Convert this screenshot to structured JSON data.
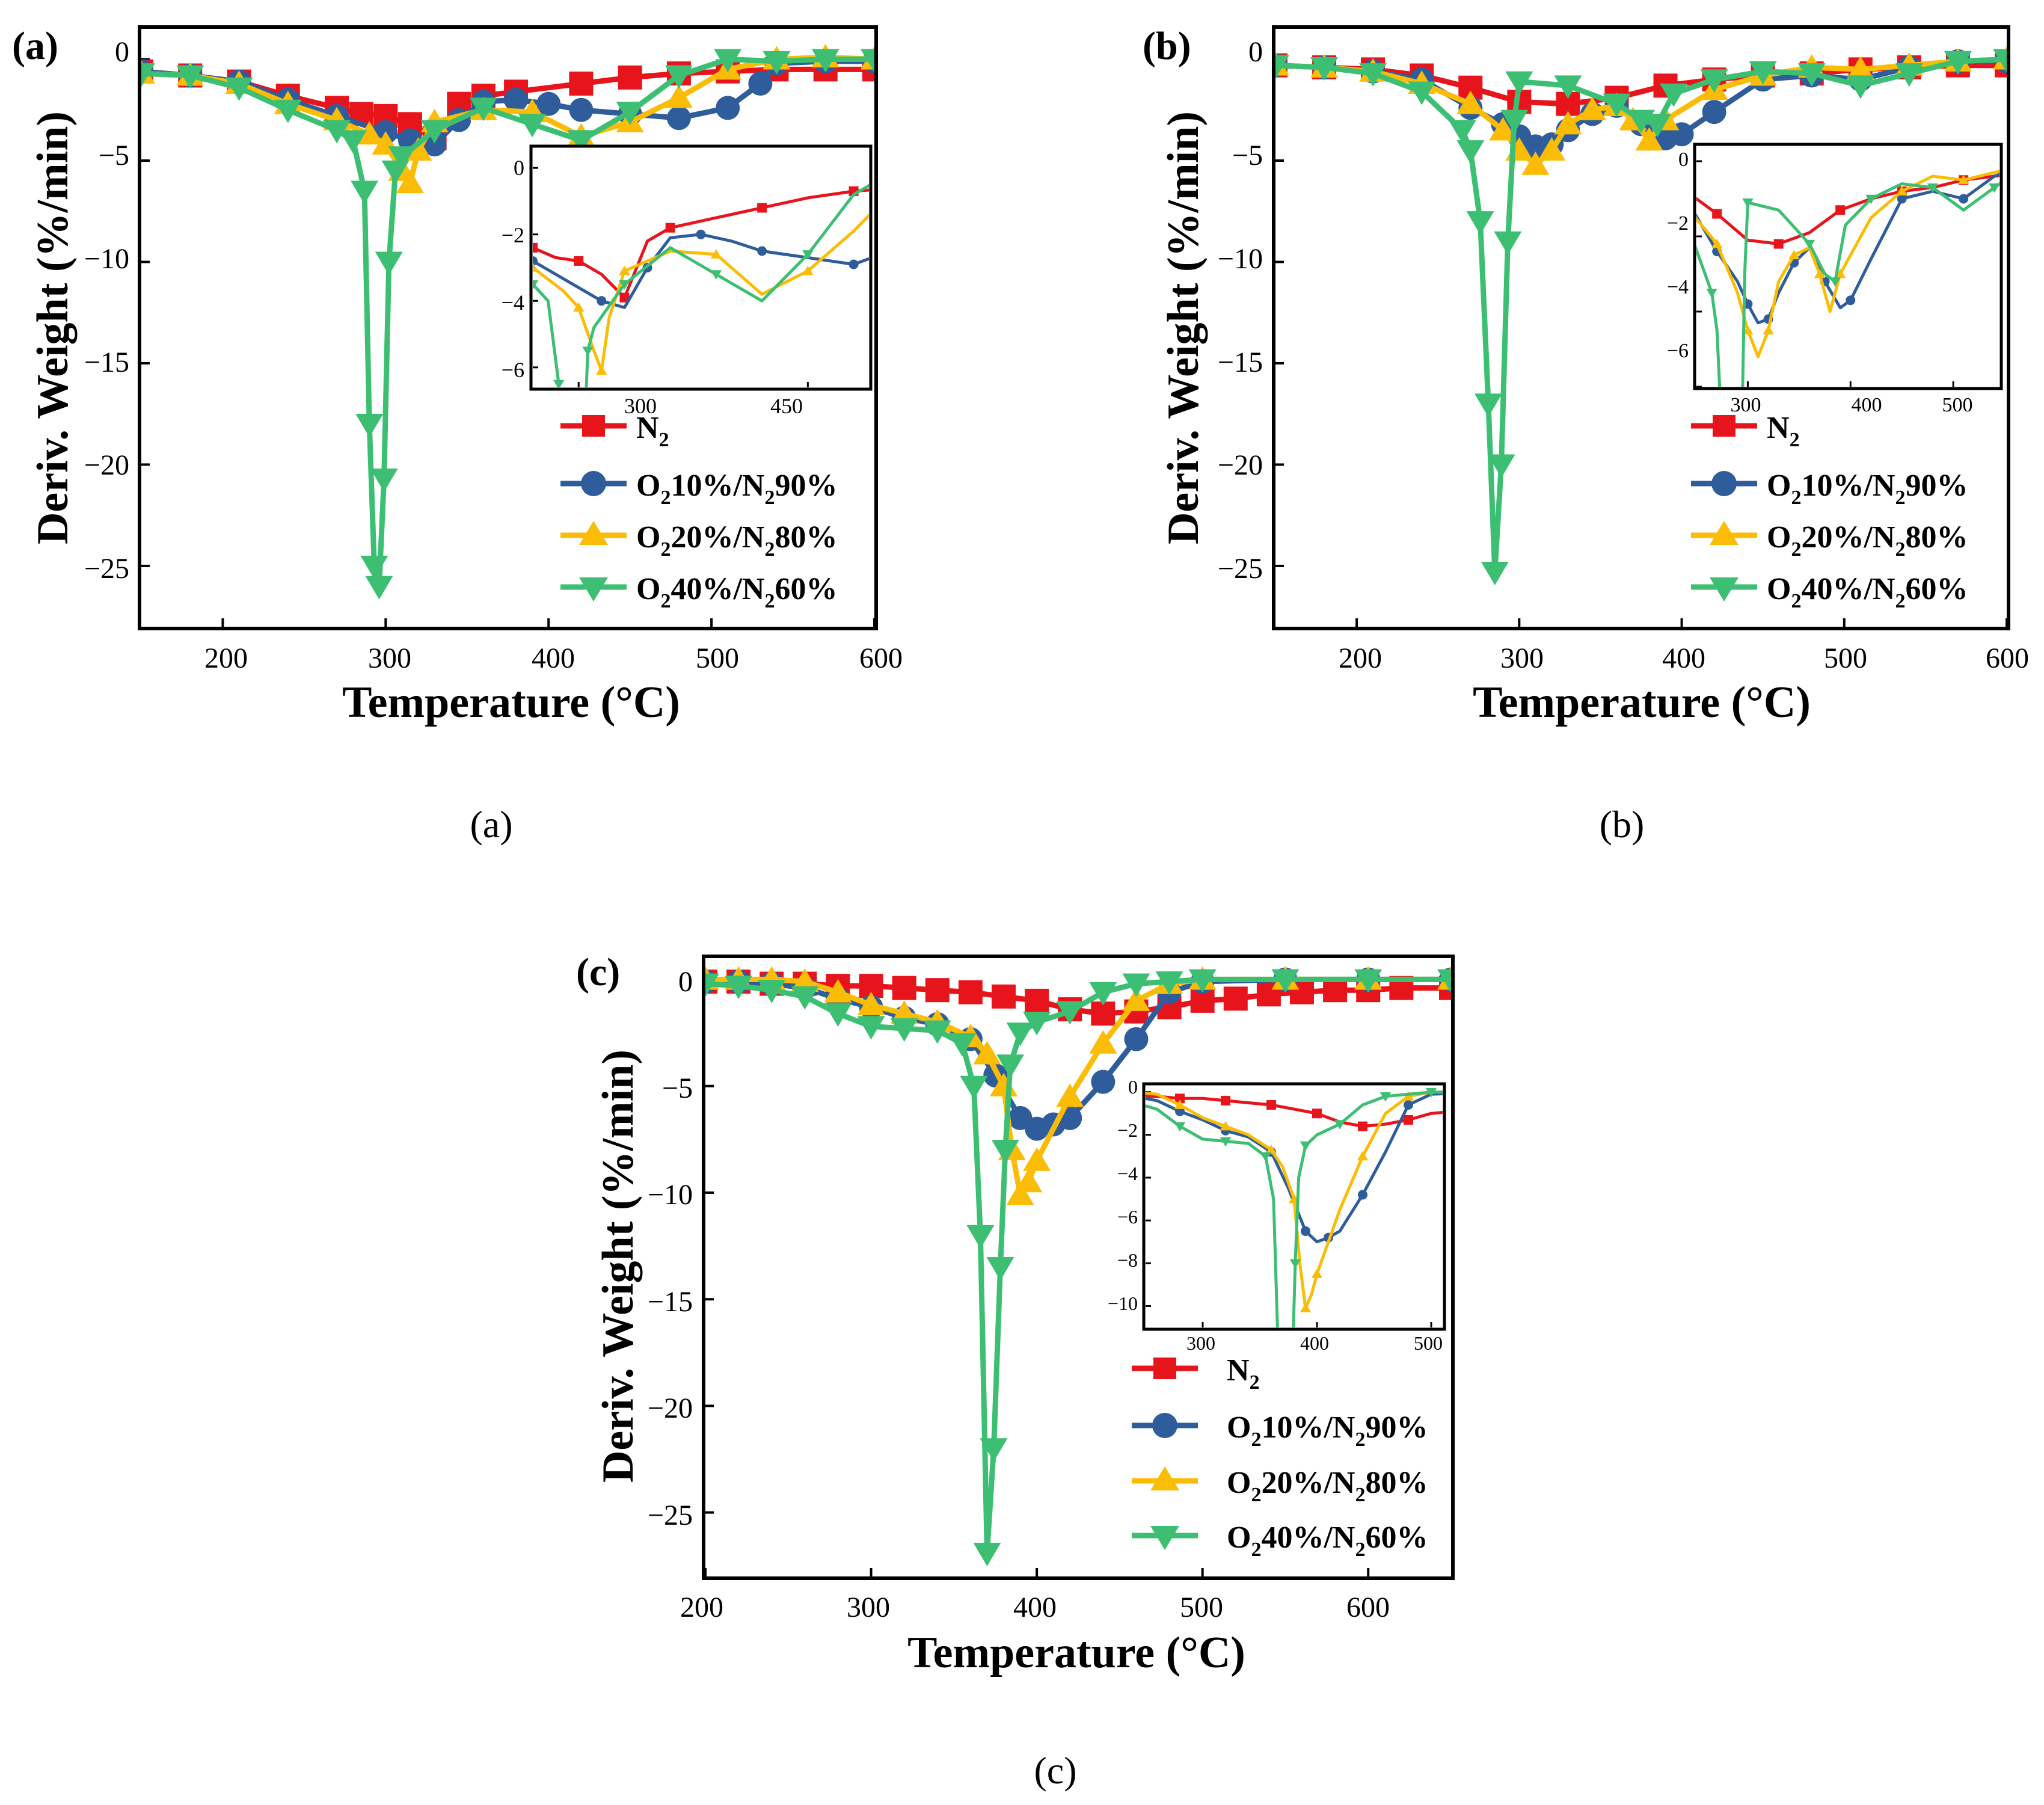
{
  "figure": {
    "colors": {
      "N2": "#e8141c",
      "O2_10": "#2f5d9b",
      "O2_20": "#fbbc05",
      "O2_40": "#3cbf72"
    },
    "legend_labels": {
      "N2": {
        "main": "N",
        "sub": "2"
      },
      "O2_10": {
        "o": "O",
        "s1": "2",
        "mid": "10%/N",
        "s2": "2",
        "end": "90%"
      },
      "O2_20": {
        "o": "O",
        "s1": "2",
        "mid": "20%/N",
        "s2": "2",
        "end": "80%"
      },
      "O2_40": {
        "o": "O",
        "s1": "2",
        "mid": "40%/N",
        "s2": "2",
        "end": "60%"
      }
    }
  },
  "panels": [
    {
      "tag": "(a)",
      "caption": "(a)",
      "xlabel": "Temperature (°C)",
      "ylabel": "Deriv. Weight (%/min)",
      "xticks": [
        "200",
        "300",
        "400",
        "500",
        "600"
      ],
      "yticks": [
        "0",
        "−5",
        "−10",
        "−15",
        "−20",
        "−25"
      ],
      "inset": {
        "xticks": [
          "300",
          "450"
        ],
        "yticks": [
          "0",
          "−2",
          "−4",
          "−6"
        ]
      }
    },
    {
      "tag": "(b)",
      "caption": "(b)",
      "xlabel": "Temperature (°C)",
      "ylabel": "Deriv. Weight (%/min)",
      "xticks": [
        "200",
        "300",
        "400",
        "500",
        "600"
      ],
      "yticks": [
        "0",
        "−5",
        "−10",
        "−15",
        "−20",
        "−25"
      ],
      "inset": {
        "xticks": [
          "300",
          "400",
          "500"
        ],
        "yticks": [
          "0",
          "−2",
          "−4",
          "−6"
        ]
      }
    },
    {
      "tag": "(c)",
      "caption": "(c)",
      "xlabel": "Temperature (°C)",
      "ylabel": "Deriv. Weight (%/min)",
      "xticks": [
        "200",
        "300",
        "400",
        "500",
        "600"
      ],
      "yticks": [
        "0",
        "−5",
        "−10",
        "−15",
        "−20",
        "−25"
      ],
      "inset": {
        "xticks": [
          "300",
          "400",
          "500"
        ],
        "yticks": [
          "0",
          "−2",
          "−4",
          "−6",
          "−8",
          "−10"
        ]
      }
    }
  ],
  "chart_data": [
    {
      "type": "line",
      "title": "(a)",
      "xlabel": "Temperature (°C)",
      "ylabel": "Deriv. Weight (%/min)",
      "xlim": [
        150,
        600
      ],
      "ylim": [
        -28,
        1.5
      ],
      "legend": "bottom-right",
      "series": [
        {
          "name": "N2",
          "key": "N2",
          "marker": "square",
          "x": [
            150,
            180,
            210,
            240,
            270,
            285,
            300,
            315,
            330,
            345,
            360,
            380,
            420,
            450,
            480,
            510,
            540,
            570,
            600
          ],
          "y": [
            -0.6,
            -0.8,
            -1.1,
            -1.8,
            -2.4,
            -2.7,
            -2.8,
            -3.2,
            -3.9,
            -2.2,
            -1.8,
            -1.6,
            -1.2,
            -0.9,
            -0.7,
            -0.6,
            -0.5,
            -0.5,
            -0.5
          ]
        },
        {
          "name": "O2 10%/N2 90%",
          "key": "O2_10",
          "marker": "circle",
          "x": [
            150,
            180,
            210,
            240,
            270,
            300,
            315,
            330,
            345,
            360,
            380,
            400,
            420,
            450,
            480,
            510,
            530,
            540,
            570,
            600
          ],
          "y": [
            -0.6,
            -0.8,
            -1.1,
            -2.0,
            -2.8,
            -3.6,
            -4.0,
            -4.2,
            -3.0,
            -2.1,
            -2.0,
            -2.2,
            -2.5,
            -2.7,
            -2.9,
            -2.4,
            -1.2,
            -0.2,
            -0.1,
            -0.1
          ]
        },
        {
          "name": "O2 20%/N2 80%",
          "key": "O2_20",
          "marker": "triangle-up",
          "x": [
            150,
            180,
            210,
            240,
            270,
            290,
            300,
            310,
            315,
            320,
            330,
            360,
            390,
            420,
            450,
            480,
            510,
            540,
            570,
            600
          ],
          "y": [
            -0.7,
            -0.8,
            -1.2,
            -2.2,
            -3.0,
            -3.7,
            -4.2,
            -5.5,
            -6.1,
            -4.5,
            -3.1,
            -2.5,
            -2.6,
            -3.8,
            -3.1,
            -1.9,
            -0.5,
            0,
            0.1,
            0
          ]
        },
        {
          "name": "O2 40%/N2 60%",
          "key": "O2_40",
          "marker": "triangle-down",
          "x": [
            150,
            180,
            210,
            240,
            270,
            280,
            287,
            290,
            293,
            296,
            299,
            302,
            306,
            310,
            330,
            360,
            390,
            420,
            450,
            480,
            510,
            540,
            570,
            600
          ],
          "y": [
            -0.7,
            -0.8,
            -1.4,
            -2.5,
            -3.5,
            -4.0,
            -6.5,
            -18.0,
            -25.0,
            -26.0,
            -20.7,
            -10.0,
            -5.5,
            -4.8,
            -3.5,
            -2.4,
            -3.2,
            -4.0,
            -2.6,
            -0.8,
            0,
            -0.1,
            0,
            0
          ]
        }
      ],
      "inset": {
        "xlim": [
          270,
          490
        ],
        "ylim": [
          -6.6,
          0.6
        ],
        "xticks": [
          300,
          450
        ],
        "yticks": [
          0,
          -2,
          -4,
          -6
        ]
      }
    },
    {
      "type": "line",
      "title": "(b)",
      "xlabel": "Temperature (°C)",
      "ylabel": "Deriv. Weight (%/min)",
      "xlim": [
        150,
        600
      ],
      "ylim": [
        -28,
        1.5
      ],
      "legend": "bottom-right",
      "series": [
        {
          "name": "N2",
          "key": "N2",
          "marker": "square",
          "x": [
            150,
            180,
            210,
            240,
            270,
            300,
            330,
            360,
            390,
            420,
            450,
            480,
            510,
            540,
            570,
            600
          ],
          "y": [
            -0.3,
            -0.4,
            -0.5,
            -0.8,
            -1.4,
            -2.1,
            -2.2,
            -1.9,
            -1.3,
            -1.0,
            -0.8,
            -0.7,
            -0.5,
            -0.4,
            -0.3,
            -0.3
          ]
        },
        {
          "name": "O2 10%/N2 90%",
          "key": "O2_10",
          "marker": "circle",
          "x": [
            150,
            180,
            210,
            240,
            270,
            290,
            300,
            310,
            320,
            330,
            345,
            360,
            375,
            390,
            400,
            420,
            450,
            480,
            510,
            540,
            570,
            600
          ],
          "y": [
            -0.3,
            -0.4,
            -0.6,
            -1.0,
            -2.4,
            -3.2,
            -3.8,
            -4.3,
            -4.2,
            -3.5,
            -2.7,
            -2.3,
            -3.2,
            -3.9,
            -3.7,
            -2.6,
            -1.0,
            -0.8,
            -1.0,
            -0.4,
            -0.1,
            -0.1
          ]
        },
        {
          "name": "O2 20%/N2 80%",
          "key": "O2_20",
          "marker": "triangle-up",
          "x": [
            150,
            180,
            210,
            240,
            270,
            290,
            300,
            310,
            320,
            330,
            345,
            360,
            370,
            380,
            390,
            420,
            450,
            480,
            510,
            540,
            570,
            600
          ],
          "y": [
            -0.3,
            -0.4,
            -0.6,
            -1.2,
            -2.2,
            -3.5,
            -4.5,
            -5.2,
            -4.5,
            -3.2,
            -2.5,
            -2.3,
            -3.0,
            -4.0,
            -3.0,
            -1.5,
            -0.8,
            -0.4,
            -0.5,
            -0.3,
            -0.1,
            0
          ]
        },
        {
          "name": "O2 40%/N2 60%",
          "key": "O2_40",
          "marker": "triangle-down",
          "x": [
            150,
            180,
            210,
            240,
            265,
            270,
            276,
            281,
            285,
            289,
            293,
            297,
            300,
            330,
            360,
            375,
            385,
            395,
            420,
            450,
            480,
            510,
            540,
            570,
            600
          ],
          "y": [
            -0.3,
            -0.4,
            -0.7,
            -1.6,
            -3.5,
            -4.5,
            -8.0,
            -17.0,
            -25.3,
            -20.0,
            -9.0,
            -3.0,
            -1.1,
            -1.3,
            -2.2,
            -3.0,
            -3.2,
            -1.7,
            -1.0,
            -0.6,
            -0.7,
            -1.3,
            -0.7,
            -0.1,
            0
          ]
        }
      ],
      "inset": {
        "xlim": [
          250,
          545
        ],
        "ylim": [
          -6,
          0.4
        ],
        "xticks": [
          300,
          400,
          500
        ],
        "yticks": [
          0,
          -2,
          -4,
          -6
        ]
      }
    },
    {
      "type": "line",
      "title": "(c)",
      "xlabel": "Temperature (°C)",
      "ylabel": "Deriv. Weight (%/min)",
      "xlim": [
        200,
        650
      ],
      "ylim": [
        -28,
        1.0
      ],
      "legend": "bottom-right",
      "series": [
        {
          "name": "N2",
          "key": "N2",
          "marker": "square",
          "x": [
            200,
            220,
            240,
            260,
            280,
            300,
            320,
            340,
            360,
            380,
            400,
            420,
            440,
            460,
            480,
            500,
            520,
            540,
            560,
            580,
            600,
            620,
            650
          ],
          "y": [
            -0.1,
            -0.1,
            -0.2,
            -0.2,
            -0.3,
            -0.3,
            -0.4,
            -0.5,
            -0.6,
            -0.8,
            -1.0,
            -1.4,
            -1.6,
            -1.5,
            -1.3,
            -1.0,
            -0.9,
            -0.7,
            -0.6,
            -0.5,
            -0.5,
            -0.4,
            -0.4
          ]
        },
        {
          "name": "O2 10%/N2 90%",
          "key": "O2_10",
          "marker": "circle",
          "x": [
            200,
            220,
            240,
            260,
            280,
            300,
            320,
            340,
            360,
            375,
            390,
            400,
            410,
            420,
            440,
            460,
            480,
            500,
            550,
            600,
            650
          ],
          "y": [
            -0.1,
            -0.1,
            -0.2,
            -0.4,
            -0.9,
            -1.3,
            -1.8,
            -2.1,
            -2.8,
            -4.5,
            -6.5,
            -7.0,
            -6.8,
            -6.5,
            -4.8,
            -2.8,
            -0.6,
            -0.1,
            0,
            0,
            0
          ]
        },
        {
          "name": "O2 20%/N2 80%",
          "key": "O2_20",
          "marker": "triangle-up",
          "x": [
            200,
            220,
            240,
            260,
            280,
            300,
            320,
            340,
            360,
            370,
            380,
            385,
            390,
            395,
            400,
            420,
            440,
            460,
            480,
            500,
            550,
            600,
            650
          ],
          "y": [
            0,
            0,
            0,
            -0.1,
            -0.6,
            -1.2,
            -1.6,
            -2.0,
            -2.7,
            -3.5,
            -5.0,
            -8.0,
            -10.1,
            -9.5,
            -8.5,
            -5.5,
            -3.0,
            -1.0,
            -0.2,
            0,
            0,
            0,
            0
          ]
        },
        {
          "name": "O2 40%/N2 60%",
          "key": "O2_40",
          "marker": "triangle-down",
          "x": [
            200,
            220,
            240,
            260,
            280,
            300,
            320,
            340,
            355,
            362,
            366,
            370,
            374,
            378,
            381,
            384,
            390,
            400,
            420,
            440,
            460,
            480,
            500,
            550,
            600,
            650
          ],
          "y": [
            -0.2,
            -0.3,
            -0.5,
            -0.8,
            -1.6,
            -2.2,
            -2.3,
            -2.4,
            -3.0,
            -5.0,
            -12.0,
            -26.9,
            -22.0,
            -13.5,
            -8.0,
            -4.0,
            -2.5,
            -2.0,
            -1.5,
            -0.6,
            -0.2,
            -0.1,
            0,
            0,
            0,
            0
          ]
        }
      ],
      "inset": {
        "xlim": [
          250,
          510
        ],
        "ylim": [
          -11,
          0.3
        ],
        "xticks": [
          300,
          400,
          500
        ],
        "yticks": [
          0,
          -2,
          -4,
          -6,
          -8,
          -10
        ]
      }
    }
  ]
}
